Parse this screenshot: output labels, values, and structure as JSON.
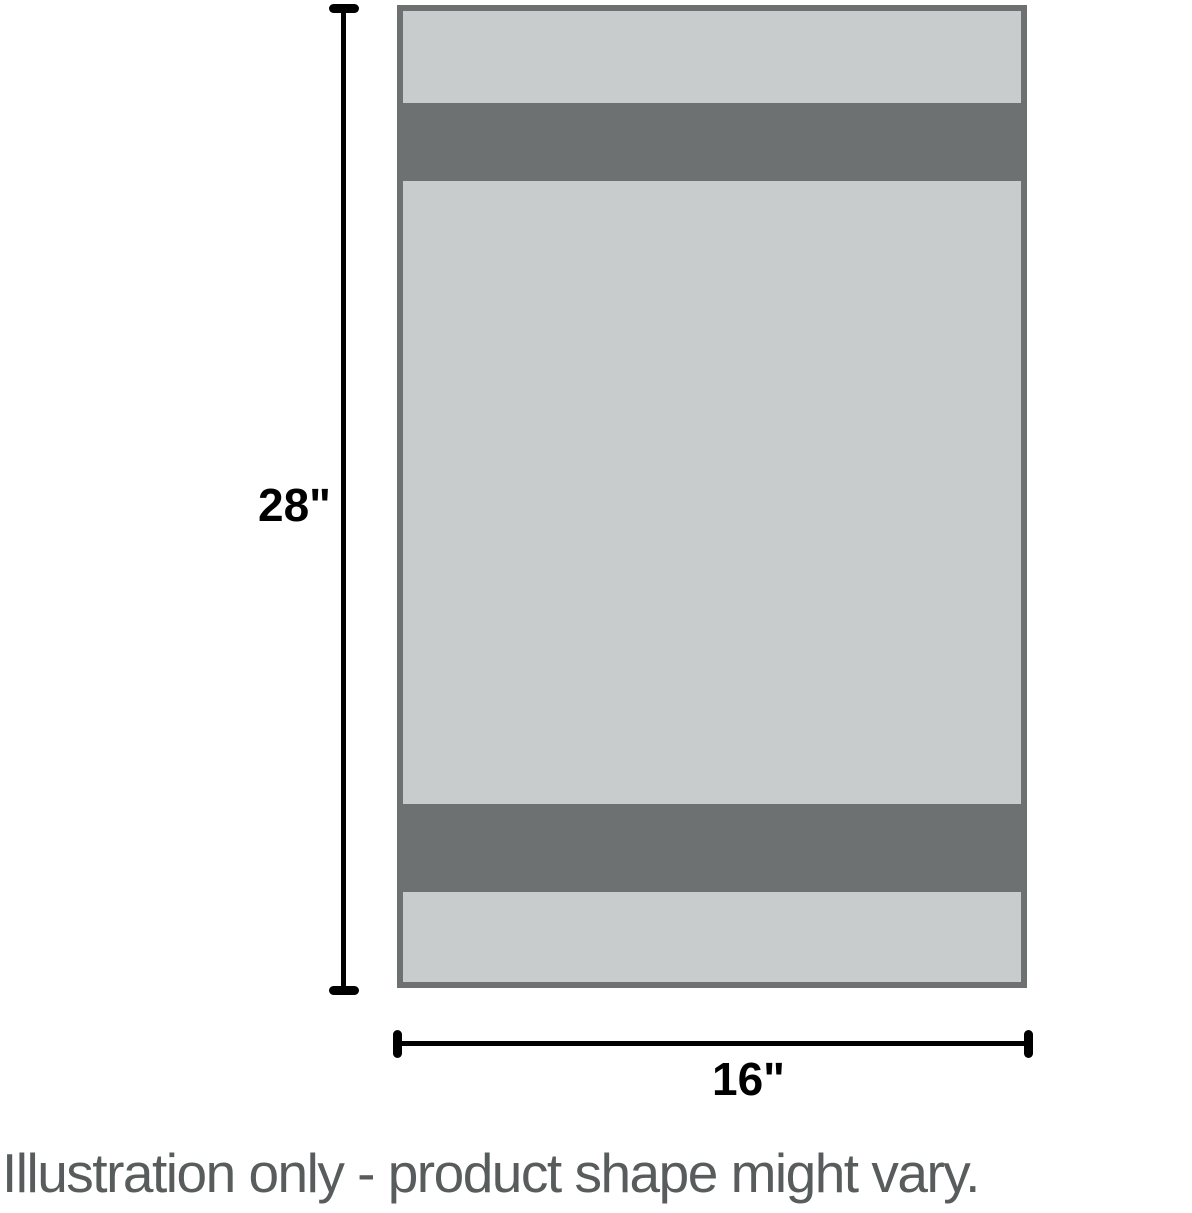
{
  "illustration": {
    "dimensions": {
      "height_label": "28\"",
      "width_label": "16\""
    },
    "caption": "Illustration only - product shape might vary.",
    "colors": {
      "product_fill": "#c9cccc",
      "product_border": "#6e7172",
      "stripe": "#6e7172",
      "dimension_line": "#000000",
      "caption_text": "#585c5c"
    }
  }
}
